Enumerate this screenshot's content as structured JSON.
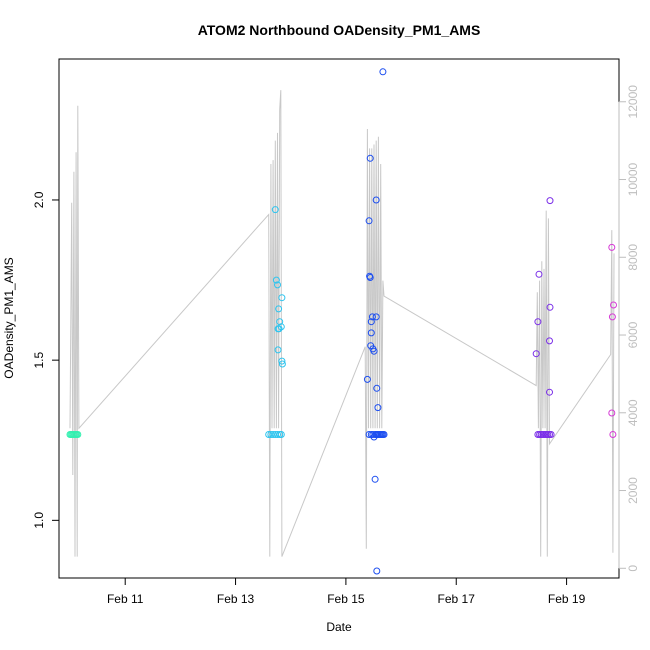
{
  "chart_data": {
    "type": "scatter",
    "title": "ATOM2 Northbound OADensity_PM1_AMS",
    "xlabel": "Date",
    "ylabel": "OADensity_PM1_AMS",
    "x_unit": "days since Feb 10 00:00",
    "xlim": [
      9.8,
      19.95
    ],
    "ylim": [
      0.82,
      2.44
    ],
    "y2lim": [
      -250,
      13100
    ],
    "x_ticks": [
      {
        "value": 11,
        "label": "Feb 11"
      },
      {
        "value": 13,
        "label": "Feb 13"
      },
      {
        "value": 15,
        "label": "Feb 15"
      },
      {
        "value": 17,
        "label": "Feb 17"
      },
      {
        "value": 19,
        "label": "Feb 19"
      }
    ],
    "y_ticks": [
      {
        "value": 1.0,
        "label": "1.0"
      },
      {
        "value": 1.5,
        "label": "1.5"
      },
      {
        "value": 2.0,
        "label": "2.0"
      }
    ],
    "y2_ticks": [
      {
        "value": 0,
        "label": "0"
      },
      {
        "value": 2000,
        "label": "2000"
      },
      {
        "value": 4000,
        "label": "4000"
      },
      {
        "value": 6000,
        "label": "6000"
      },
      {
        "value": 8000,
        "label": "8000"
      },
      {
        "value": 10000,
        "label": "10000"
      },
      {
        "value": 12000,
        "label": "12000"
      }
    ],
    "grid": false,
    "legend": "none",
    "line_color": "#c8c8c8",
    "line_series": [
      [
        10.0,
        3600
      ],
      [
        10.03,
        9400
      ],
      [
        10.05,
        2400
      ],
      [
        10.07,
        10200
      ],
      [
        10.09,
        300
      ],
      [
        10.11,
        10700
      ],
      [
        10.13,
        300
      ],
      [
        10.14,
        11900
      ],
      [
        10.16,
        3600
      ],
      [
        13.6,
        9100
      ],
      [
        13.62,
        300
      ],
      [
        13.64,
        10400
      ],
      [
        13.66,
        3600
      ],
      [
        13.68,
        10500
      ],
      [
        13.7,
        3600
      ],
      [
        13.72,
        11000
      ],
      [
        13.74,
        3600
      ],
      [
        13.76,
        11200
      ],
      [
        13.78,
        3600
      ],
      [
        13.8,
        11800
      ],
      [
        13.82,
        12300
      ],
      [
        13.84,
        300
      ],
      [
        15.35,
        5700
      ],
      [
        15.37,
        500
      ],
      [
        15.39,
        11300
      ],
      [
        15.41,
        3600
      ],
      [
        15.43,
        10800
      ],
      [
        15.45,
        3600
      ],
      [
        15.47,
        10800
      ],
      [
        15.49,
        3600
      ],
      [
        15.51,
        10900
      ],
      [
        15.53,
        3600
      ],
      [
        15.55,
        11000
      ],
      [
        15.57,
        3600
      ],
      [
        15.59,
        11100
      ],
      [
        15.61,
        3600
      ],
      [
        15.63,
        10400
      ],
      [
        15.65,
        3600
      ],
      [
        15.67,
        7400
      ],
      [
        15.69,
        7000
      ],
      [
        18.45,
        4700
      ],
      [
        18.47,
        7100
      ],
      [
        18.49,
        3600
      ],
      [
        18.51,
        7400
      ],
      [
        18.53,
        300
      ],
      [
        18.55,
        7900
      ],
      [
        18.57,
        3600
      ],
      [
        18.59,
        7700
      ],
      [
        18.61,
        3600
      ],
      [
        18.63,
        9200
      ],
      [
        18.65,
        300
      ],
      [
        18.67,
        9000
      ],
      [
        18.69,
        3200
      ],
      [
        19.8,
        5500
      ],
      [
        19.82,
        8700
      ],
      [
        19.84,
        400
      ],
      [
        19.86,
        8100
      ]
    ],
    "points": [
      {
        "x": 10.0,
        "y": 1.268,
        "color": "#33f0b0"
      },
      {
        "x": 10.02,
        "y": 1.268,
        "color": "#33f0b0"
      },
      {
        "x": 10.04,
        "y": 1.268,
        "color": "#33f0b0"
      },
      {
        "x": 10.06,
        "y": 1.268,
        "color": "#33f0b0"
      },
      {
        "x": 10.08,
        "y": 1.268,
        "color": "#33f0b0"
      },
      {
        "x": 10.1,
        "y": 1.268,
        "color": "#33f0b0"
      },
      {
        "x": 10.12,
        "y": 1.268,
        "color": "#33f0b0"
      },
      {
        "x": 10.14,
        "y": 1.268,
        "color": "#33f0b0"
      },
      {
        "x": 13.6,
        "y": 1.268,
        "color": "#2ec4ee"
      },
      {
        "x": 13.64,
        "y": 1.268,
        "color": "#2ec4ee"
      },
      {
        "x": 13.68,
        "y": 1.268,
        "color": "#2ec4ee"
      },
      {
        "x": 13.72,
        "y": 1.268,
        "color": "#2ec4ee"
      },
      {
        "x": 13.76,
        "y": 1.268,
        "color": "#2ec4ee"
      },
      {
        "x": 13.8,
        "y": 1.268,
        "color": "#2ec4ee"
      },
      {
        "x": 13.83,
        "y": 1.268,
        "color": "#2ec4ee"
      },
      {
        "x": 13.72,
        "y": 1.97,
        "color": "#2ec4ee"
      },
      {
        "x": 13.74,
        "y": 1.75,
        "color": "#2ec4ee"
      },
      {
        "x": 13.76,
        "y": 1.735,
        "color": "#2ec4ee"
      },
      {
        "x": 13.78,
        "y": 1.66,
        "color": "#2ec4ee"
      },
      {
        "x": 13.84,
        "y": 1.695,
        "color": "#2ec4ee"
      },
      {
        "x": 13.8,
        "y": 1.62,
        "color": "#2ec4ee"
      },
      {
        "x": 13.77,
        "y": 1.598,
        "color": "#2ec4ee"
      },
      {
        "x": 13.79,
        "y": 1.598,
        "color": "#2ec4ee"
      },
      {
        "x": 13.83,
        "y": 1.604,
        "color": "#2ec4ee"
      },
      {
        "x": 13.77,
        "y": 1.532,
        "color": "#2ec4ee"
      },
      {
        "x": 13.84,
        "y": 1.497,
        "color": "#2ec4ee"
      },
      {
        "x": 13.85,
        "y": 1.488,
        "color": "#2ec4ee"
      },
      {
        "x": 15.67,
        "y": 2.4,
        "color": "#1c4ef0"
      },
      {
        "x": 15.44,
        "y": 2.13,
        "color": "#1c4ef0"
      },
      {
        "x": 15.55,
        "y": 2.0,
        "color": "#1c4ef0"
      },
      {
        "x": 15.42,
        "y": 1.935,
        "color": "#1c4ef0"
      },
      {
        "x": 15.43,
        "y": 1.762,
        "color": "#1c4ef0"
      },
      {
        "x": 15.44,
        "y": 1.758,
        "color": "#1c4ef0"
      },
      {
        "x": 15.48,
        "y": 1.635,
        "color": "#1c4ef0"
      },
      {
        "x": 15.55,
        "y": 1.635,
        "color": "#1c4ef0"
      },
      {
        "x": 15.46,
        "y": 1.62,
        "color": "#1c4ef0"
      },
      {
        "x": 15.46,
        "y": 1.585,
        "color": "#1c4ef0"
      },
      {
        "x": 15.45,
        "y": 1.545,
        "color": "#1c4ef0"
      },
      {
        "x": 15.49,
        "y": 1.535,
        "color": "#1c4ef0"
      },
      {
        "x": 15.51,
        "y": 1.528,
        "color": "#1c4ef0"
      },
      {
        "x": 15.39,
        "y": 1.44,
        "color": "#1c4ef0"
      },
      {
        "x": 15.56,
        "y": 1.412,
        "color": "#1c4ef0"
      },
      {
        "x": 15.58,
        "y": 1.352,
        "color": "#1c4ef0"
      },
      {
        "x": 15.53,
        "y": 1.128,
        "color": "#1c4ef0"
      },
      {
        "x": 15.56,
        "y": 0.842,
        "color": "#1c4ef0"
      },
      {
        "x": 15.42,
        "y": 1.268,
        "color": "#1c4ef0"
      },
      {
        "x": 15.46,
        "y": 1.268,
        "color": "#1c4ef0"
      },
      {
        "x": 15.49,
        "y": 1.268,
        "color": "#1c4ef0"
      },
      {
        "x": 15.51,
        "y": 1.26,
        "color": "#1c4ef0"
      },
      {
        "x": 15.53,
        "y": 1.268,
        "color": "#1c4ef0"
      },
      {
        "x": 15.55,
        "y": 1.268,
        "color": "#1c4ef0"
      },
      {
        "x": 15.57,
        "y": 1.268,
        "color": "#1c4ef0"
      },
      {
        "x": 15.59,
        "y": 1.268,
        "color": "#1c4ef0"
      },
      {
        "x": 15.61,
        "y": 1.268,
        "color": "#1c4ef0"
      },
      {
        "x": 15.63,
        "y": 1.268,
        "color": "#1c4ef0"
      },
      {
        "x": 15.65,
        "y": 1.268,
        "color": "#1c4ef0"
      },
      {
        "x": 15.67,
        "y": 1.268,
        "color": "#1c4ef0"
      },
      {
        "x": 15.69,
        "y": 1.268,
        "color": "#1c4ef0"
      },
      {
        "x": 18.5,
        "y": 1.768,
        "color": "#7a2ee8"
      },
      {
        "x": 18.48,
        "y": 1.62,
        "color": "#7a2ee8"
      },
      {
        "x": 18.45,
        "y": 1.52,
        "color": "#7a2ee8"
      },
      {
        "x": 18.7,
        "y": 1.998,
        "color": "#7a2ee8"
      },
      {
        "x": 18.7,
        "y": 1.665,
        "color": "#7a2ee8"
      },
      {
        "x": 18.69,
        "y": 1.56,
        "color": "#7a2ee8"
      },
      {
        "x": 18.69,
        "y": 1.4,
        "color": "#7a2ee8"
      },
      {
        "x": 18.48,
        "y": 1.268,
        "color": "#7a2ee8"
      },
      {
        "x": 18.51,
        "y": 1.268,
        "color": "#7a2ee8"
      },
      {
        "x": 18.54,
        "y": 1.268,
        "color": "#7a2ee8"
      },
      {
        "x": 18.57,
        "y": 1.268,
        "color": "#7a2ee8"
      },
      {
        "x": 18.6,
        "y": 1.268,
        "color": "#7a2ee8"
      },
      {
        "x": 18.63,
        "y": 1.268,
        "color": "#7a2ee8"
      },
      {
        "x": 18.66,
        "y": 1.268,
        "color": "#7a2ee8"
      },
      {
        "x": 18.69,
        "y": 1.268,
        "color": "#7a2ee8"
      },
      {
        "x": 18.72,
        "y": 1.268,
        "color": "#7a2ee8"
      },
      {
        "x": 19.82,
        "y": 1.852,
        "color": "#d63ad6"
      },
      {
        "x": 19.85,
        "y": 1.672,
        "color": "#d63ad6"
      },
      {
        "x": 19.83,
        "y": 1.635,
        "color": "#d63ad6"
      },
      {
        "x": 19.82,
        "y": 1.335,
        "color": "#d63ad6"
      },
      {
        "x": 19.84,
        "y": 1.268,
        "color": "#d63ad6"
      }
    ]
  }
}
